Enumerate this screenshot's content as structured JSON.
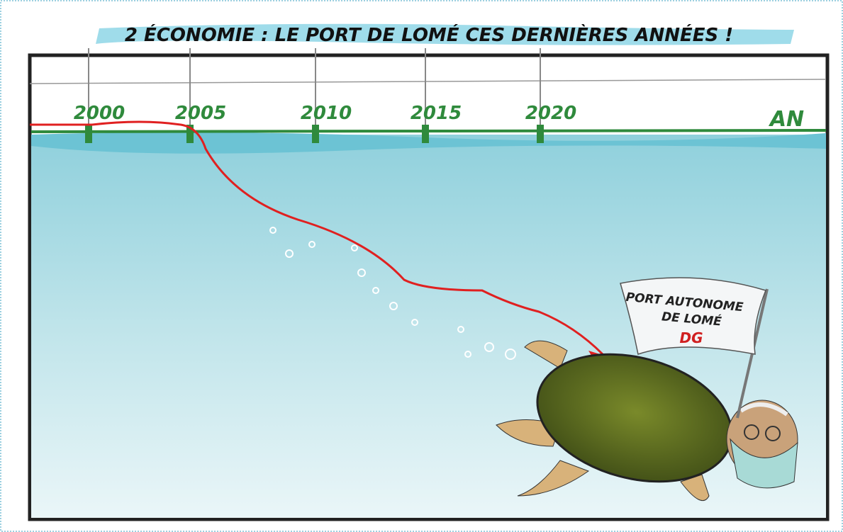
{
  "header": {
    "title": "2 ÉCONOMIE : LE PORT DE LOMÉ CES DERNIÈRES ANNÉES !"
  },
  "timeline": {
    "labels": [
      "2000",
      "2005",
      "2010",
      "2015",
      "2020"
    ],
    "axis_label": "AN"
  },
  "flag": {
    "lines": [
      "PORT AUTONOME",
      "DE LOMÉ"
    ],
    "signature": "DG"
  }
}
